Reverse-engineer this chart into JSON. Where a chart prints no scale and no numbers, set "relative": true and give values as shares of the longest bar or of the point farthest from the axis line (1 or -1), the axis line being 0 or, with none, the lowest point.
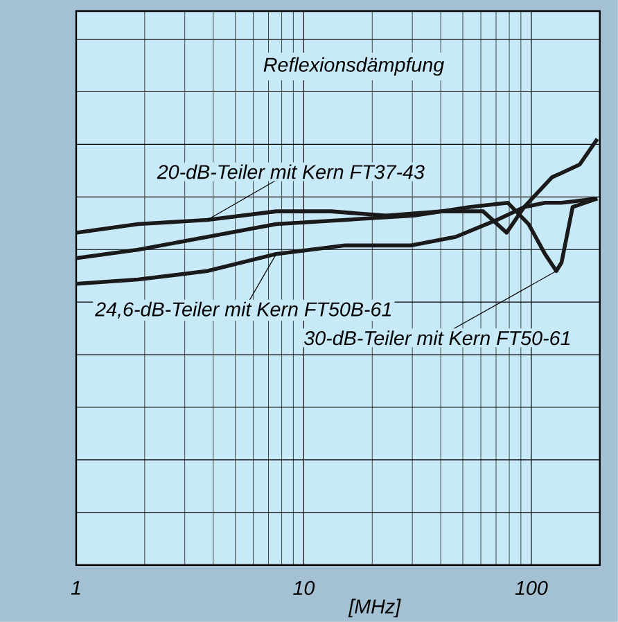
{
  "chart_data": {
    "type": "line",
    "title": "Reflexionsdämpfung",
    "xlabel": "[MHz]",
    "log": "x",
    "xlim": [
      1,
      200
    ],
    "xticks": [
      1,
      10,
      100
    ],
    "relative": true,
    "grid": true,
    "series": [
      {
        "name": "20-dB-Teiler mit Kern FT37-43",
        "color": "#1a1a1a",
        "x": [
          1,
          1.87,
          3.77,
          7.57,
          13.2,
          23.0,
          40.4,
          61.4,
          67.5,
          77.9,
          93.0,
          114.8,
          135.8,
          195
        ],
        "values": [
          0.78,
          0.8,
          0.81,
          0.83,
          0.83,
          0.82,
          0.83,
          0.83,
          0.81,
          0.78,
          0.84,
          0.85,
          0.85,
          0.86
        ]
      },
      {
        "name": "24,6-dB-Teiler mit Kern FT50B-61",
        "color": "#1a1a1a",
        "x": [
          1,
          1.87,
          3.77,
          7.57,
          15.2,
          29.7,
          46.5,
          70.7,
          93.0,
          123.3,
          135.8,
          163.2,
          195
        ],
        "values": [
          0.66,
          0.67,
          0.69,
          0.73,
          0.75,
          0.75,
          0.77,
          0.81,
          0.84,
          0.91,
          0.92,
          0.94,
          1.0
        ]
      },
      {
        "name": "30-dB-Teiler mit Kern FT50-61",
        "color": "#1a1a1a",
        "x": [
          1,
          1.87,
          3.77,
          7.57,
          15.2,
          30.5,
          53.4,
          78.9,
          97.3,
          114.8,
          128.8,
          135.8,
          151.9,
          195
        ],
        "values": [
          0.72,
          0.74,
          0.77,
          0.8,
          0.81,
          0.82,
          0.84,
          0.85,
          0.8,
          0.73,
          0.69,
          0.71,
          0.84,
          0.86
        ]
      }
    ]
  }
}
